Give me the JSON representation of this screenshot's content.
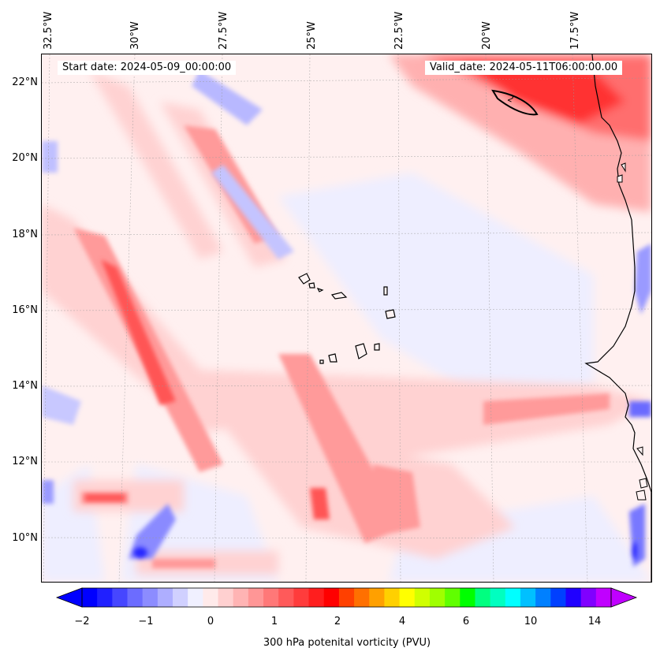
{
  "header": {
    "start_date": "Start date: 2024-05-09_00:00:00",
    "valid_date": "Valid_date: 2024-05-11T06:00:00.00"
  },
  "map": {
    "lon_labels": [
      "32.5°W",
      "30°W",
      "27.5°W",
      "25°W",
      "22.5°W",
      "20°W",
      "17.5°W"
    ],
    "lat_labels": [
      "22°N",
      "20°N",
      "18°N",
      "16°N",
      "14°N",
      "12°N",
      "10°N"
    ],
    "contour_label": "2",
    "colors": {
      "neg_strong": "#0000ff",
      "neg_mid": "#5a5aff",
      "neg_weak": "#c8c8ff",
      "neg_faint": "#f0f0ff",
      "pos_faint": "#ffeaea",
      "pos_light": "#ffc8c8",
      "pos_mid": "#ff8c8c",
      "pos_strong": "#ff5050",
      "pos_max": "#ff1a1a",
      "land": "#ffffff",
      "coast": "#000000"
    }
  },
  "colorbar": {
    "ticks": [
      "−2",
      "−1",
      "0",
      "1",
      "2",
      "4",
      "6",
      "10",
      "14"
    ],
    "title": "300 hPa potenital vorticity (PVU)",
    "colors": [
      "#0000ff",
      "#2020ff",
      "#4646ff",
      "#6c6cff",
      "#8c8cff",
      "#aeaeff",
      "#d0d0ff",
      "#f0f0ff",
      "#ffeaea",
      "#ffd0d0",
      "#ffb4b4",
      "#ff9696",
      "#ff7878",
      "#ff5a5a",
      "#ff3c3c",
      "#ff1e1e",
      "#ff0000",
      "#ff4000",
      "#ff7000",
      "#ffa000",
      "#ffd000",
      "#ffff00",
      "#d0ff00",
      "#a0ff00",
      "#60ff00",
      "#00ff00",
      "#00ff80",
      "#00ffc0",
      "#00ffff",
      "#00c0ff",
      "#0080ff",
      "#0040ff",
      "#2000ff",
      "#8000ff",
      "#c000ff"
    ]
  }
}
